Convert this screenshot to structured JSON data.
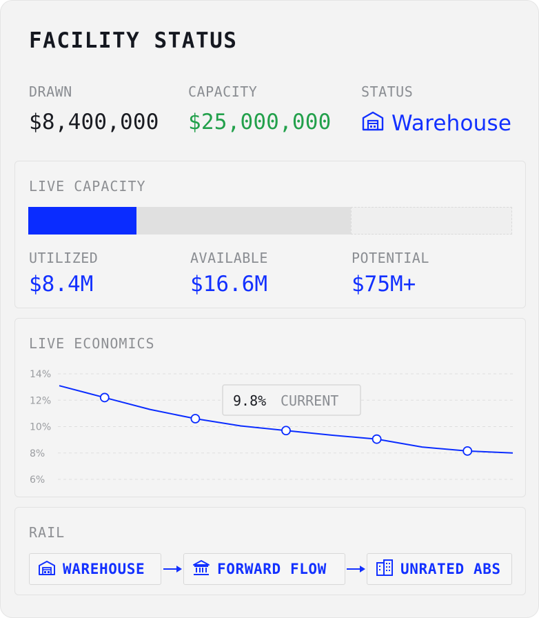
{
  "header": {
    "title": "FACILITY STATUS"
  },
  "summary": {
    "drawn": {
      "label": "DRAWN",
      "value": "$8,400,000"
    },
    "capacity": {
      "label": "CAPACITY",
      "value": "$25,000,000"
    },
    "status": {
      "label": "STATUS",
      "value": "Warehouse",
      "icon": "warehouse-icon"
    }
  },
  "live_capacity": {
    "label": "LIVE CAPACITY",
    "utilized_fraction": 0.336,
    "available_fraction": 0.664,
    "utilized": {
      "label": "UTILIZED",
      "value": "$8.4M"
    },
    "available": {
      "label": "AVAILABLE",
      "value": "$16.6M"
    },
    "potential": {
      "label": "POTENTIAL",
      "value": "$75M+"
    }
  },
  "live_economics": {
    "label": "LIVE ECONOMICS",
    "callout": {
      "value": "9.8%",
      "label": "CURRENT"
    }
  },
  "chart_data": {
    "type": "line",
    "title": "",
    "xlabel": "",
    "ylabel": "",
    "y_ticks": [
      "14%",
      "12%",
      "10%",
      "8%",
      "6%"
    ],
    "ylim": [
      6,
      14
    ],
    "grid": true,
    "line_points": [
      {
        "x": 0,
        "y": 13.1
      },
      {
        "x": 1,
        "y": 12.2
      },
      {
        "x": 2,
        "y": 11.3
      },
      {
        "x": 3,
        "y": 10.6
      },
      {
        "x": 4,
        "y": 10.05
      },
      {
        "x": 5,
        "y": 9.7
      },
      {
        "x": 6,
        "y": 9.35
      },
      {
        "x": 7,
        "y": 9.05
      },
      {
        "x": 8,
        "y": 8.45
      },
      {
        "x": 9,
        "y": 8.15
      },
      {
        "x": 10,
        "y": 8.0
      }
    ],
    "markers": [
      1,
      3,
      5,
      7,
      9
    ],
    "color": "#0a2cff"
  },
  "rail": {
    "label": "RAIL",
    "steps": [
      {
        "label": "WAREHOUSE",
        "icon": "warehouse-icon"
      },
      {
        "label": "FORWARD FLOW",
        "icon": "bank-icon"
      },
      {
        "label": "UNRATED ABS",
        "icon": "office-building-icon"
      }
    ]
  },
  "colors": {
    "accent": "#0a2cff",
    "positive": "#22a04b",
    "muted": "#8a8d92"
  }
}
